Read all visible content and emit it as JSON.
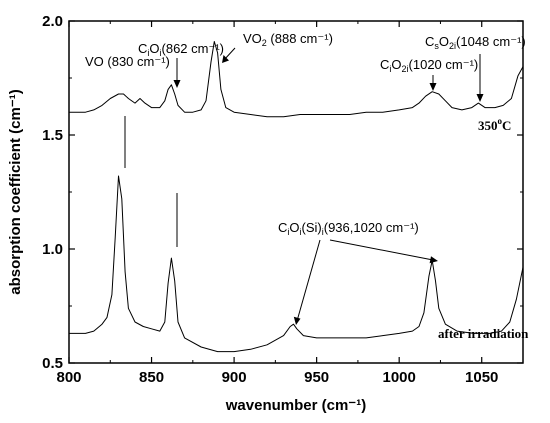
{
  "chart_data": {
    "type": "line",
    "xlabel": "wavenumber (cm⁻¹)",
    "ylabel": "absorption coefficient (cm⁻¹)",
    "xlim": [
      800,
      1075
    ],
    "ylim": [
      0.5,
      2.0
    ],
    "x_ticks": [
      800,
      850,
      900,
      950,
      1000,
      1050
    ],
    "x_tick_labels": [
      "800",
      "850",
      "900",
      "950",
      "1000",
      "1050"
    ],
    "y_ticks": [
      0.5,
      1.0,
      1.5,
      2.0
    ],
    "y_tick_labels": [
      "0.5",
      "1.0",
      "1.5",
      "2.0"
    ],
    "grid": false,
    "legend": "none",
    "series": [
      {
        "name": "350°C",
        "points": [
          [
            800,
            1.6
          ],
          [
            810,
            1.6
          ],
          [
            815,
            1.61
          ],
          [
            820,
            1.63
          ],
          [
            825,
            1.66
          ],
          [
            830,
            1.68
          ],
          [
            833,
            1.68
          ],
          [
            836,
            1.66
          ],
          [
            840,
            1.64
          ],
          [
            843,
            1.66
          ],
          [
            846,
            1.64
          ],
          [
            850,
            1.62
          ],
          [
            855,
            1.62
          ],
          [
            858,
            1.65
          ],
          [
            860,
            1.7
          ],
          [
            862,
            1.72
          ],
          [
            864,
            1.68
          ],
          [
            866,
            1.63
          ],
          [
            870,
            1.6
          ],
          [
            875,
            1.6
          ],
          [
            880,
            1.61
          ],
          [
            883,
            1.65
          ],
          [
            886,
            1.82
          ],
          [
            888,
            1.91
          ],
          [
            890,
            1.86
          ],
          [
            892,
            1.7
          ],
          [
            895,
            1.62
          ],
          [
            900,
            1.6
          ],
          [
            910,
            1.59
          ],
          [
            920,
            1.58
          ],
          [
            930,
            1.58
          ],
          [
            940,
            1.59
          ],
          [
            950,
            1.59
          ],
          [
            960,
            1.59
          ],
          [
            970,
            1.59
          ],
          [
            980,
            1.6
          ],
          [
            990,
            1.6
          ],
          [
            1000,
            1.61
          ],
          [
            1008,
            1.62
          ],
          [
            1012,
            1.64
          ],
          [
            1016,
            1.67
          ],
          [
            1020,
            1.69
          ],
          [
            1024,
            1.68
          ],
          [
            1028,
            1.65
          ],
          [
            1032,
            1.62
          ],
          [
            1038,
            1.61
          ],
          [
            1044,
            1.62
          ],
          [
            1048,
            1.64
          ],
          [
            1052,
            1.62
          ],
          [
            1058,
            1.62
          ],
          [
            1063,
            1.63
          ],
          [
            1068,
            1.66
          ],
          [
            1072,
            1.76
          ],
          [
            1075,
            1.8
          ]
        ]
      },
      {
        "name": "after irradiation",
        "points": [
          [
            800,
            0.63
          ],
          [
            810,
            0.63
          ],
          [
            815,
            0.64
          ],
          [
            820,
            0.67
          ],
          [
            823,
            0.7
          ],
          [
            826,
            0.8
          ],
          [
            828,
            1.05
          ],
          [
            830,
            1.32
          ],
          [
            832,
            1.22
          ],
          [
            834,
            0.9
          ],
          [
            836,
            0.74
          ],
          [
            840,
            0.68
          ],
          [
            845,
            0.66
          ],
          [
            850,
            0.65
          ],
          [
            855,
            0.64
          ],
          [
            858,
            0.68
          ],
          [
            860,
            0.85
          ],
          [
            862,
            0.96
          ],
          [
            864,
            0.86
          ],
          [
            866,
            0.68
          ],
          [
            870,
            0.61
          ],
          [
            880,
            0.57
          ],
          [
            890,
            0.55
          ],
          [
            900,
            0.55
          ],
          [
            910,
            0.56
          ],
          [
            920,
            0.58
          ],
          [
            930,
            0.62
          ],
          [
            934,
            0.66
          ],
          [
            936,
            0.67
          ],
          [
            938,
            0.65
          ],
          [
            942,
            0.62
          ],
          [
            950,
            0.61
          ],
          [
            960,
            0.61
          ],
          [
            970,
            0.61
          ],
          [
            980,
            0.61
          ],
          [
            990,
            0.62
          ],
          [
            1000,
            0.63
          ],
          [
            1008,
            0.64
          ],
          [
            1012,
            0.66
          ],
          [
            1015,
            0.72
          ],
          [
            1018,
            0.88
          ],
          [
            1020,
            0.95
          ],
          [
            1022,
            0.86
          ],
          [
            1024,
            0.74
          ],
          [
            1028,
            0.67
          ],
          [
            1035,
            0.64
          ],
          [
            1045,
            0.63
          ],
          [
            1055,
            0.63
          ],
          [
            1062,
            0.64
          ],
          [
            1067,
            0.68
          ],
          [
            1071,
            0.78
          ],
          [
            1075,
            0.92
          ]
        ]
      }
    ],
    "annotations": {
      "vo": {
        "label": "VO (830 cm⁻¹)"
      },
      "cioi": {
        "main": "C",
        "s1": "i",
        "mid": "O",
        "s2": "i",
        "rest": "(862 cm⁻¹)"
      },
      "vo2": {
        "main": "VO",
        "s1": "2",
        "rest": " (888 cm⁻¹)"
      },
      "cio2i": {
        "main": "C",
        "s1": "i",
        "mid": "O",
        "s2": "2i",
        "rest": "(1020 cm⁻¹)"
      },
      "cso2i": {
        "main": "C",
        "s1": "s",
        "mid": "O",
        "s2": "2i",
        "rest": "(1048 cm⁻¹)"
      },
      "cioisi": {
        "main": "C",
        "s1": "i",
        "mid": "O",
        "s2": "i",
        "mid2": "(Si)",
        "s3": "i",
        "rest": "(936,1020 cm⁻¹)"
      },
      "temp": {
        "label": "350",
        "sup": "o",
        "unit": "C"
      },
      "after": {
        "label": "after irradiation"
      }
    }
  }
}
